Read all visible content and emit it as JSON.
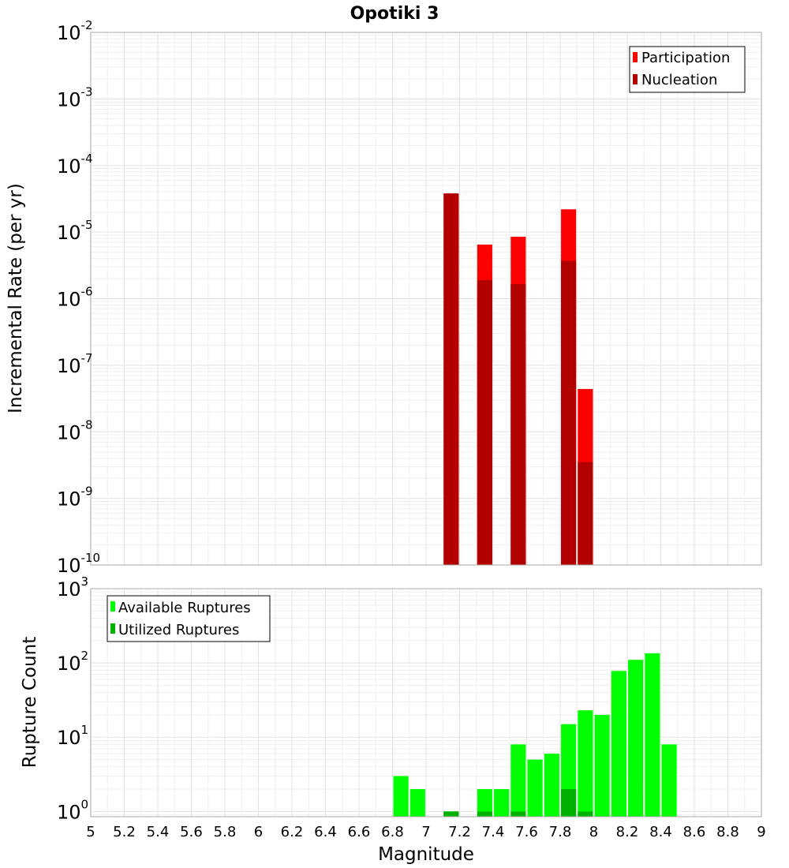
{
  "chart_data": [
    {
      "type": "bar",
      "title": "Opotiki 3",
      "xlabel": "Magnitude",
      "ylabel": "Incremental Rate (per yr)",
      "yscale": "log",
      "xlim": [
        5,
        9
      ],
      "ylim": [
        1e-10,
        0.01
      ],
      "grid": true,
      "legend_position": "top-right",
      "bar_width": 0.09,
      "x_ticks": [
        "5",
        "5.2",
        "5.4",
        "5.6",
        "5.8",
        "6",
        "6.2",
        "6.4",
        "6.6",
        "6.8",
        "7",
        "7.2",
        "7.4",
        "7.6",
        "7.8",
        "8",
        "8.2",
        "8.4",
        "8.6",
        "8.8",
        "9"
      ],
      "y_tick_exponents": [
        "-10",
        "-9",
        "-8",
        "-7",
        "-6",
        "-5",
        "-4",
        "-3",
        "-2"
      ],
      "series": [
        {
          "name": "Participation",
          "color": "#ff0000",
          "x": [
            7.15,
            7.35,
            7.55,
            7.85,
            7.95
          ],
          "values": [
            3.8e-05,
            6.5e-06,
            8.5e-06,
            2.2e-05,
            4.4e-08
          ]
        },
        {
          "name": "Nucleation",
          "color": "#b20000",
          "x": [
            7.15,
            7.35,
            7.55,
            7.85,
            7.95
          ],
          "values": [
            3.8e-05,
            1.9e-06,
            1.65e-06,
            3.7e-06,
            3.5e-09
          ]
        }
      ]
    },
    {
      "type": "bar",
      "title": "",
      "xlabel": "Magnitude",
      "ylabel": "Rupture Count",
      "yscale": "log",
      "xlim": [
        5,
        9
      ],
      "ylim": [
        0.85,
        1000
      ],
      "grid": true,
      "legend_position": "top-left",
      "bar_width": 0.09,
      "y_tick_exponents": [
        "0",
        "1",
        "2",
        "3"
      ],
      "series": [
        {
          "name": "Available Ruptures",
          "color": "#00ff00",
          "x": [
            6.85,
            6.95,
            7.15,
            7.35,
            7.45,
            7.55,
            7.65,
            7.75,
            7.85,
            7.95,
            8.05,
            8.15,
            8.25,
            8.35,
            8.45
          ],
          "values": [
            3,
            2,
            1,
            2,
            2,
            8,
            5,
            6,
            15,
            23,
            20,
            78,
            110,
            135,
            8
          ]
        },
        {
          "name": "Utilized Ruptures",
          "color": "#00b200",
          "x": [
            7.15,
            7.35,
            7.55,
            7.85,
            7.95
          ],
          "values": [
            1,
            1,
            1,
            2,
            1
          ]
        }
      ]
    }
  ]
}
